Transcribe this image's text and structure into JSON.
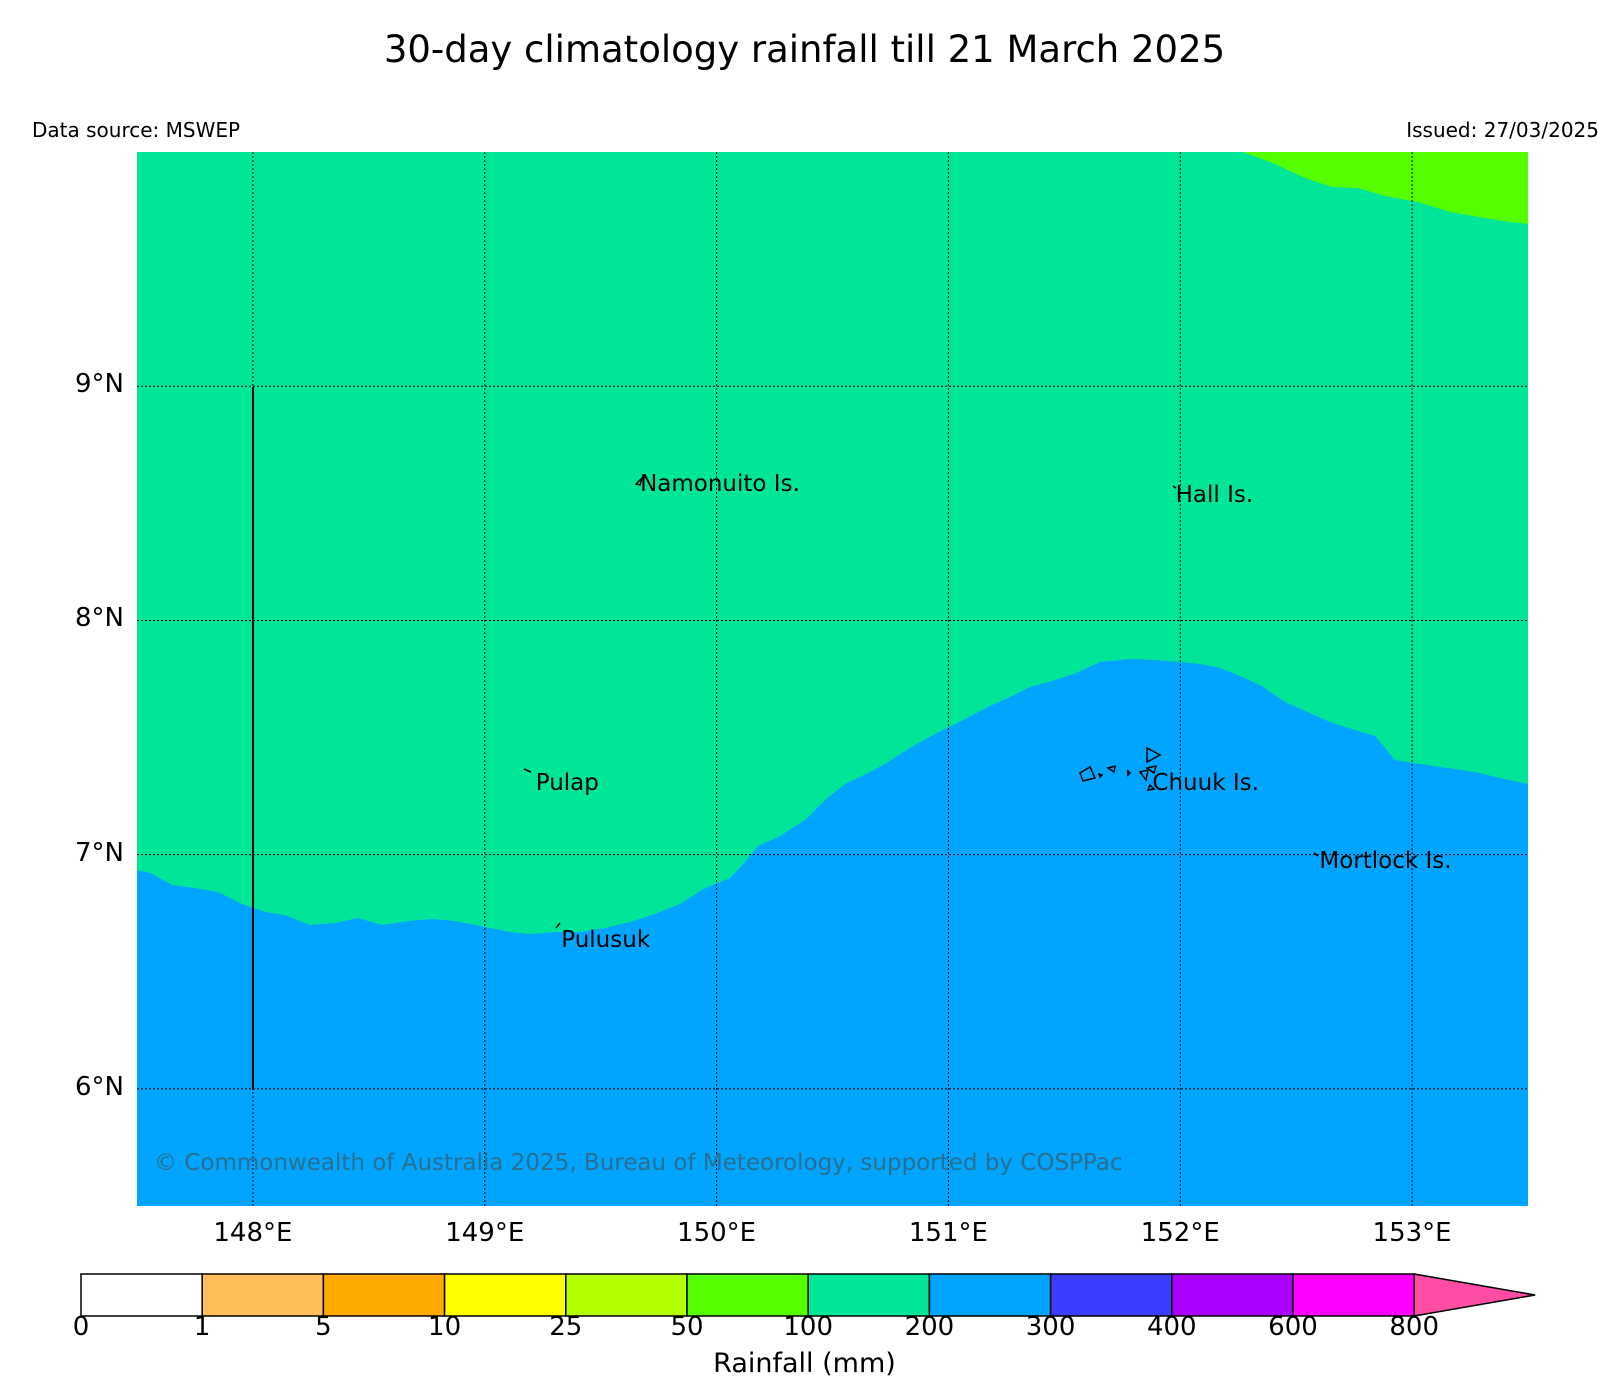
{
  "title": "30-day climatology rainfall till 21 March 2025",
  "data_source": "Data source: MSWEP",
  "issued": "Issued: 27/03/2025",
  "copyright": "© Commonwealth of Australia 2025, Bureau of Meteorology, supported by COSPPac",
  "map": {
    "lon_range": [
      147.5,
      153.5
    ],
    "lat_range": [
      5.5,
      10.0
    ],
    "lat_ticks": [
      {
        "value": 9,
        "label": "9°N"
      },
      {
        "value": 8,
        "label": "8°N"
      },
      {
        "value": 7,
        "label": "7°N"
      },
      {
        "value": 6,
        "label": "6°N"
      }
    ],
    "lon_ticks": [
      {
        "value": 148,
        "label": "148°E"
      },
      {
        "value": 149,
        "label": "149°E"
      },
      {
        "value": 150,
        "label": "150°E"
      },
      {
        "value": 151,
        "label": "151°E"
      },
      {
        "value": 152,
        "label": "152°E"
      },
      {
        "value": 153,
        "label": "153°E"
      }
    ],
    "grid": true,
    "regions": [
      {
        "range": "100-200",
        "color": "#00e699"
      },
      {
        "range": "200-300",
        "color": "#00a5ff"
      },
      {
        "range": "50-100",
        "color": "#55ff00"
      }
    ],
    "places": [
      {
        "name": "Namonuito Is.",
        "lon": 149.67,
        "lat": 8.58
      },
      {
        "name": "Hall Is.",
        "lon": 151.98,
        "lat": 8.53
      },
      {
        "name": "Pulap",
        "lon": 149.22,
        "lat": 7.3
      },
      {
        "name": "Chuuk Is.",
        "lon": 151.88,
        "lat": 7.3
      },
      {
        "name": "Mortlock Is.",
        "lon": 152.6,
        "lat": 6.97
      },
      {
        "name": "Pulusuk",
        "lon": 149.33,
        "lat": 6.63
      }
    ]
  },
  "legend": {
    "label": "Rainfall (mm)",
    "ticks": [
      "0",
      "1",
      "5",
      "10",
      "25",
      "50",
      "100",
      "200",
      "300",
      "400",
      "600",
      "800"
    ],
    "colors": [
      "#ffffff",
      "#ffbe5a",
      "#ffaa00",
      "#ffff00",
      "#b4ff00",
      "#55ff00",
      "#00e699",
      "#00a5ff",
      "#3c3cff",
      "#aa00ff",
      "#ff00ff",
      "#ff4da6"
    ]
  }
}
